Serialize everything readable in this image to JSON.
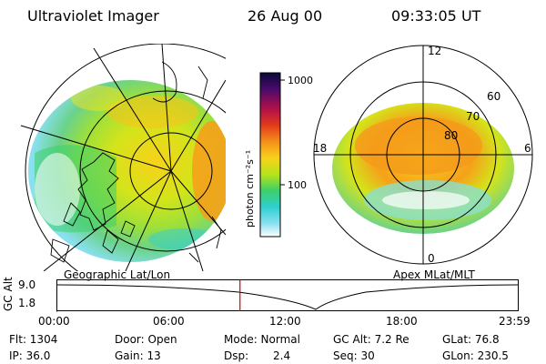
{
  "header": {
    "instrument": "Ultraviolet Imager",
    "date": "26 Aug 00",
    "time": "09:33:05 UT"
  },
  "left_panel": {
    "caption": "Geographic Lat/Lon"
  },
  "right_panel": {
    "caption": "Apex MLat/MLT",
    "mlt_labels": {
      "top": "12",
      "left": "18",
      "right": "6",
      "bottom": "0"
    },
    "lat_labels": [
      "60",
      "70",
      "80"
    ]
  },
  "colorbar": {
    "unit_label": "photon cm⁻²s⁻¹",
    "ticks": [
      "1000",
      "100"
    ],
    "colors": [
      "#0a0a3a",
      "#4a0a6a",
      "#b0104a",
      "#e23a1a",
      "#f58f1a",
      "#f7d21a",
      "#b7e31a",
      "#3ccf6a",
      "#2fd0d0",
      "#8ae0f0",
      "#ffffff"
    ]
  },
  "altitude_plot": {
    "ylabel": "GC Alt",
    "yticks": [
      "9.0",
      "1.8"
    ],
    "xticks": [
      "00:00",
      "06:00",
      "12:00",
      "18:00",
      "23:59"
    ],
    "current_time_hours": 9.55,
    "marker_color": "#cc0000"
  },
  "info": {
    "flt": "Flt: 1304",
    "door": "Door: Open",
    "mode": "Mode: Normal",
    "gc_alt": "GC Alt: 7.2 Re",
    "glat": "GLat: 76.8",
    "ip": "IP: 36.0",
    "gain": "Gain: 13",
    "dsp_label": "Dsp:",
    "dsp_value": "2.4",
    "seq": "Seq: 30",
    "glon": "GLon: 230.5"
  }
}
